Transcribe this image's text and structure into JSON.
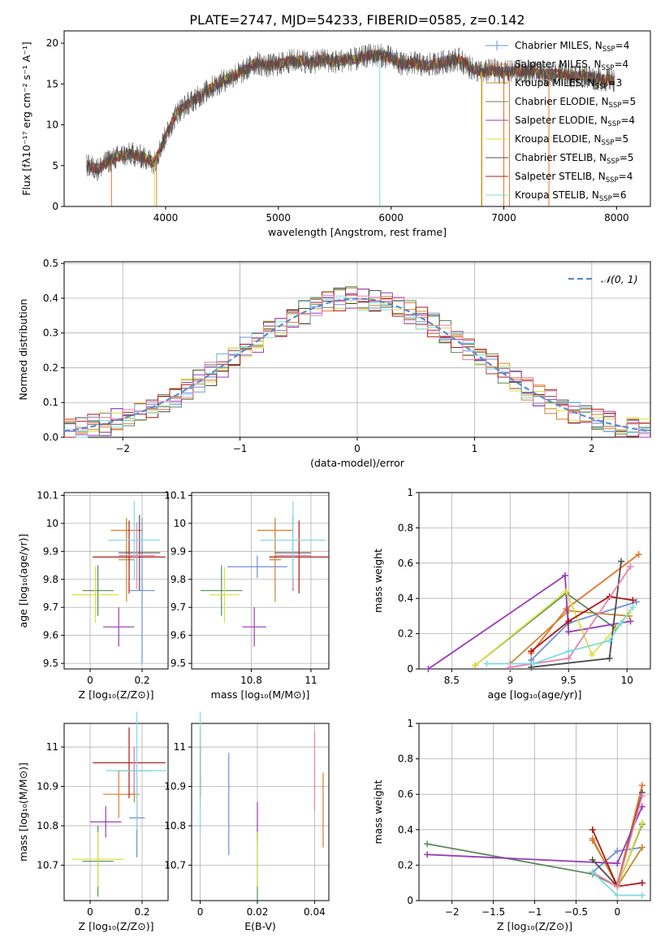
{
  "title": "PLATE=2747, MJD=54233, FIBERID=0585, z=0.142",
  "chart_data": [
    {
      "id": "spectrum",
      "type": "line",
      "xlabel": "wavelength [Angstrom, rest frame]",
      "ylabel": "Flux [fλ10⁻¹⁷ erg cm⁻² s⁻¹ A⁻¹]",
      "xlim": [
        3100,
        8300
      ],
      "ylim": [
        0,
        21.5
      ],
      "xticks": [
        4000,
        5000,
        6000,
        7000,
        8000
      ],
      "yticks": [
        0,
        5,
        10,
        15,
        20
      ],
      "legend_position": "top-right",
      "series": [
        {
          "name": "Chabrier MILES, N_SSP=4",
          "label": "Chabrier MILES, N",
          "sub": "SSP",
          "suffix": "=4",
          "color": "#6f8fd8"
        },
        {
          "name": "Salpeter MILES, N_SSP=4",
          "label": "Salpeter MILES, N",
          "sub": "SSP",
          "suffix": "=4",
          "color": "#e4742a"
        },
        {
          "name": "Kroupa MILES, N_SSP=3",
          "label": "Kroupa MILES, N",
          "sub": "SSP",
          "suffix": "=3",
          "color": "#c8862f"
        },
        {
          "name": "Chabrier ELODIE, N_SSP=5",
          "label": "Chabrier ELODIE, N",
          "sub": "SSP",
          "suffix": "=5",
          "color": "#5b8a5b"
        },
        {
          "name": "Salpeter ELODIE, N_SSP=4",
          "label": "Salpeter ELODIE, N",
          "sub": "SSP",
          "suffix": "=4",
          "color": "#9a39b8"
        },
        {
          "name": "Kroupa ELODIE, N_SSP=5",
          "label": "Kroupa ELODIE, N",
          "sub": "SSP",
          "suffix": "=5",
          "color": "#d8e040"
        },
        {
          "name": "Chabrier STELIB, N_SSP=5",
          "label": "Chabrier STELIB, N",
          "sub": "SSP",
          "suffix": "=5",
          "color": "#4d4d4d"
        },
        {
          "name": "Salpeter STELIB, N_SSP=4",
          "label": "Salpeter STELIB, N",
          "sub": "SSP",
          "suffix": "=4",
          "color": "#b01818"
        },
        {
          "name": "Kroupa STELIB, N_SSP=6",
          "label": "Kroupa STELIB, N",
          "sub": "SSP",
          "suffix": "=6",
          "color": "#7fd9e0"
        }
      ],
      "envelope": {
        "x": [
          3300,
          3400,
          3500,
          3600,
          3700,
          3800,
          3900,
          4000,
          4100,
          4200,
          4300,
          4400,
          4500,
          4600,
          4700,
          4800,
          4900,
          5000,
          5100,
          5200,
          5300,
          5400,
          5500,
          5600,
          5700,
          5800,
          5900,
          6000,
          6100,
          6200,
          6300,
          6400,
          6500,
          6600,
          6700,
          6800,
          6900,
          7000,
          7100,
          7200,
          7300,
          7400,
          7500,
          7600,
          7700,
          7800,
          7900
        ],
        "y": [
          5.0,
          4.6,
          5.6,
          6.2,
          6.4,
          6.0,
          5.4,
          8.6,
          11.5,
          12.6,
          13.5,
          14.5,
          15.3,
          16.0,
          16.6,
          17.6,
          17.2,
          17.4,
          17.8,
          17.9,
          17.6,
          18.0,
          17.7,
          18.0,
          18.0,
          18.5,
          18.5,
          18.2,
          17.4,
          17.6,
          17.2,
          17.5,
          17.8,
          18.0,
          17.0,
          16.4,
          16.7,
          16.4,
          16.6,
          16.5,
          16.3,
          16.2,
          16.3,
          16.0,
          16.0,
          15.7,
          15.5
        ]
      },
      "dips": [
        [
          3520,
          0
        ],
        [
          3900,
          0
        ],
        [
          3920,
          0
        ],
        [
          5900,
          0
        ],
        [
          6800,
          0
        ],
        [
          6805,
          0
        ],
        [
          7000,
          0
        ],
        [
          7050,
          0
        ],
        [
          7400,
          0
        ]
      ]
    },
    {
      "id": "residuals",
      "type": "line",
      "xlabel": "(data-model)/error",
      "ylabel": "Normed distribution",
      "xlim": [
        -2.5,
        2.5
      ],
      "ylim": [
        0,
        0.505
      ],
      "xticks": [
        -2,
        -1,
        0,
        1,
        2
      ],
      "yticks": [
        0.0,
        0.1,
        0.2,
        0.3,
        0.4,
        0.5
      ],
      "grid": true,
      "legend_position": "top-right",
      "reference": {
        "name": "𝒩(0, 1)",
        "color": "#5b8bd0",
        "dashed": true
      },
      "bin_width": 0.1,
      "bin_start": -2.5
    },
    {
      "id": "age_vs_Z",
      "type": "scatter",
      "xlabel": "Z [log₁₀(Z/Z⊙)]",
      "ylabel": "age  [log₁₀(age/yr)]",
      "xlim": [
        -0.1,
        0.3
      ],
      "ylim": [
        9.48,
        10.11
      ],
      "xticks": [
        0.0,
        0.2
      ],
      "yticks": [
        9.5,
        9.6,
        9.7,
        9.8,
        9.9,
        10.0,
        10.1
      ],
      "grid": true,
      "points": [
        {
          "color": "#6f8fd8",
          "x": 0.2,
          "y": 9.76,
          "xerr": 0.05,
          "yerr": 0.26
        },
        {
          "color": "#e4742a",
          "x": 0.14,
          "y": 9.975,
          "xerr": 0.06,
          "yerr": 0.03
        },
        {
          "color": "#c8862f",
          "x": 0.14,
          "y": 9.87,
          "xerr": 0.03,
          "yerr": 0.15
        },
        {
          "color": "#5b8a5b",
          "x": 0.03,
          "y": 9.76,
          "xerr": 0.06,
          "yerr": 0.09
        },
        {
          "color": "#9a39b8",
          "x": 0.11,
          "y": 9.63,
          "xerr": 0.06,
          "yerr": 0.07
        },
        {
          "color": "#d8e040",
          "x": 0.02,
          "y": 9.745,
          "xerr": 0.09,
          "yerr": 0.1
        },
        {
          "color": "#4d4d4d",
          "x": 0.19,
          "y": 9.895,
          "xerr": 0.08,
          "yerr": 0.135
        },
        {
          "color": "#b01818",
          "x": 0.15,
          "y": 9.88,
          "xerr": 0.14,
          "yerr": 0.13
        },
        {
          "color": "#e882ae",
          "x": 0.18,
          "y": 9.885,
          "xerr": 0.07,
          "yerr": 0.12
        },
        {
          "color": "#7fd9e0",
          "x": 0.17,
          "y": 9.94,
          "xerr": 0.1,
          "yerr": 0.14
        }
      ]
    },
    {
      "id": "age_vs_mass",
      "type": "scatter",
      "xlabel": "mass [log₁₀(M/M⊙)]",
      "ylabel": "",
      "xlim": [
        10.6,
        11.06
      ],
      "ylim": [
        9.48,
        10.11
      ],
      "xticks": [
        10.8,
        11.0
      ],
      "yticks": [
        9.5,
        9.6,
        9.7,
        9.8,
        9.9,
        10.0,
        10.1
      ],
      "grid": true,
      "points": [
        {
          "color": "#6f8fd8",
          "x": 10.82,
          "y": 9.845,
          "xerr": 0.1,
          "yerr": 0.04
        },
        {
          "color": "#e4742a",
          "x": 10.88,
          "y": 9.975,
          "xerr": 0.06,
          "yerr": 0.03
        },
        {
          "color": "#c8862f",
          "x": 10.88,
          "y": 9.87,
          "xerr": 0.02,
          "yerr": 0.15
        },
        {
          "color": "#5b8a5b",
          "x": 10.7,
          "y": 9.76,
          "xerr": 0.07,
          "yerr": 0.09
        },
        {
          "color": "#9a39b8",
          "x": 10.81,
          "y": 9.63,
          "xerr": 0.04,
          "yerr": 0.07
        },
        {
          "color": "#d8e040",
          "x": 10.71,
          "y": 9.745,
          "xerr": 0.05,
          "yerr": 0.1
        },
        {
          "color": "#4d4d4d",
          "x": 10.94,
          "y": 9.895,
          "xerr": 0.06,
          "yerr": 0.135
        },
        {
          "color": "#b01818",
          "x": 10.96,
          "y": 9.88,
          "xerr": 0.1,
          "yerr": 0.13
        },
        {
          "color": "#e882ae",
          "x": 10.94,
          "y": 9.885,
          "xerr": 0.06,
          "yerr": 0.12
        },
        {
          "color": "#7fd9e0",
          "x": 10.94,
          "y": 9.94,
          "xerr": 0.11,
          "yerr": 0.14
        }
      ]
    },
    {
      "id": "weight_vs_age",
      "type": "line",
      "xlabel": "age  [log₁₀(age/yr)]",
      "ylabel": "mass weight",
      "xlim": [
        8.22,
        10.2
      ],
      "ylim": [
        0.0,
        1.0
      ],
      "xticks": [
        8.5,
        9.0,
        9.5,
        10.0
      ],
      "yticks": [
        0.0,
        0.2,
        0.4,
        0.6,
        0.8,
        1.0
      ],
      "grid": true,
      "series": [
        {
          "color": "#6f8fd8",
          "points": [
            [
              9.18,
              0.05
            ],
            [
              9.5,
              0.26
            ],
            [
              10.08,
              0.38
            ]
          ]
        },
        {
          "color": "#e4742a",
          "points": [
            [
              9.18,
              0.09
            ],
            [
              9.48,
              0.34
            ],
            [
              10.1,
              0.65
            ]
          ]
        },
        {
          "color": "#c8862f",
          "points": [
            [
              9.0,
              0.03
            ],
            [
              9.5,
              0.33
            ],
            [
              10.02,
              0.3
            ]
          ]
        },
        {
          "color": "#5b8a5b",
          "points": [
            [
              8.7,
              0.02
            ],
            [
              9.48,
              0.43
            ],
            [
              9.9,
              0.23
            ]
          ]
        },
        {
          "color": "#9a39b8",
          "points": [
            [
              8.3,
              0.0
            ],
            [
              9.47,
              0.53
            ],
            [
              9.5,
              0.21
            ],
            [
              10.03,
              0.27
            ]
          ]
        },
        {
          "color": "#d8e040",
          "points": [
            [
              8.7,
              0.02
            ],
            [
              9.48,
              0.44
            ],
            [
              9.7,
              0.08
            ],
            [
              10.02,
              0.32
            ]
          ]
        },
        {
          "color": "#4d4d4d",
          "points": [
            [
              9.18,
              0.01
            ],
            [
              9.85,
              0.06
            ],
            [
              9.95,
              0.61
            ]
          ]
        },
        {
          "color": "#b01818",
          "points": [
            [
              9.18,
              0.1
            ],
            [
              9.5,
              0.27
            ],
            [
              9.85,
              0.41
            ],
            [
              10.05,
              0.39
            ]
          ]
        },
        {
          "color": "#e882ae",
          "points": [
            [
              9.0,
              0.01
            ],
            [
              9.5,
              0.06
            ],
            [
              10.03,
              0.58
            ]
          ]
        },
        {
          "color": "#7fd9e0",
          "points": [
            [
              8.8,
              0.03
            ],
            [
              9.2,
              0.03
            ],
            [
              9.5,
              0.1
            ],
            [
              9.85,
              0.16
            ],
            [
              9.95,
              0.26
            ],
            [
              10.05,
              0.35
            ]
          ]
        }
      ]
    },
    {
      "id": "mass_vs_Z",
      "type": "scatter",
      "xlabel": "Z [log₁₀(Z/Z⊙)]",
      "ylabel": "mass [log₁₀(M/M⊙)]",
      "xlim": [
        -0.1,
        0.3
      ],
      "ylim": [
        10.61,
        11.06
      ],
      "xticks": [
        0.0,
        0.2
      ],
      "yticks": [
        10.7,
        10.8,
        10.9,
        11.0
      ],
      "grid": true,
      "points": [
        {
          "color": "#6f8fd8",
          "x": 0.18,
          "y": 10.82,
          "xerr": 0.03,
          "yerr": 0.1
        },
        {
          "color": "#e4742a",
          "x": 0.11,
          "y": 10.88,
          "xerr": 0.06,
          "yerr": 0.06
        },
        {
          "color": "#c8862f",
          "x": 0.17,
          "y": 10.88,
          "xerr": 0.02,
          "yerr": 0.02
        },
        {
          "color": "#5b8a5b",
          "x": 0.03,
          "y": 10.71,
          "xerr": 0.06,
          "yerr": 0.09
        },
        {
          "color": "#9a39b8",
          "x": 0.06,
          "y": 10.81,
          "xerr": 0.06,
          "yerr": 0.04
        },
        {
          "color": "#d8e040",
          "x": 0.03,
          "y": 10.715,
          "xerr": 0.1,
          "yerr": 0.07
        },
        {
          "color": "#4d4d4d",
          "x": 0.17,
          "y": 10.94,
          "xerr": 0.07,
          "yerr": 0.06
        },
        {
          "color": "#b01818",
          "x": 0.15,
          "y": 10.96,
          "xerr": 0.14,
          "yerr": 0.09
        },
        {
          "color": "#e882ae",
          "x": 0.17,
          "y": 10.94,
          "xerr": 0.07,
          "yerr": 0.06
        },
        {
          "color": "#7fd9e0",
          "x": 0.18,
          "y": 10.94,
          "xerr": 0.12,
          "yerr": 0.15
        }
      ]
    },
    {
      "id": "mass_vs_ebv",
      "type": "scatter",
      "xlabel": "E(B-V)",
      "ylabel": "",
      "xlim": [
        -0.003,
        0.045
      ],
      "ylim": [
        10.61,
        11.06
      ],
      "xticks": [
        0.0,
        0.02,
        0.04
      ],
      "yticks": [
        10.7,
        10.8,
        10.9,
        11.0
      ],
      "grid": true,
      "points": [
        {
          "color": "#6f8fd8",
          "x": 0.01,
          "y": 10.855,
          "xerr": 0,
          "yerr": 0.13
        },
        {
          "color": "#e4742a",
          "x": 0.043,
          "y": 10.84,
          "xerr": 0,
          "yerr": 0.095
        },
        {
          "color": "#c8862f",
          "x": 0.0,
          "y": 10.88,
          "xerr": 0,
          "yerr": 0.04
        },
        {
          "color": "#5b8a5b",
          "x": 0.02,
          "y": 10.7,
          "xerr": 0,
          "yerr": 0.09
        },
        {
          "color": "#9a39b8",
          "x": 0.02,
          "y": 10.81,
          "xerr": 0,
          "yerr": 0.05
        },
        {
          "color": "#d8e040",
          "x": 0.02,
          "y": 10.715,
          "xerr": 0,
          "yerr": 0.07
        },
        {
          "color": "#4d4d4d",
          "x": 0.0,
          "y": 10.94,
          "xerr": 0,
          "yerr": 0.06
        },
        {
          "color": "#b01818",
          "x": 0.0,
          "y": 10.96,
          "xerr": 0,
          "yerr": 0.09
        },
        {
          "color": "#e882ae",
          "x": 0.04,
          "y": 10.94,
          "xerr": 0,
          "yerr": 0.1
        },
        {
          "color": "#7fd9e0",
          "x": 0.0,
          "y": 10.94,
          "xerr": 0,
          "yerr": 0.15
        }
      ]
    },
    {
      "id": "weight_vs_Z",
      "type": "line",
      "xlabel": "Z [log₁₀(Z/Z⊙)]",
      "ylabel": "mass weight",
      "xlim": [
        -2.4,
        0.4
      ],
      "ylim": [
        0.0,
        1.0
      ],
      "xticks": [
        -2.0,
        -1.5,
        -1.0,
        -0.5,
        0.0
      ],
      "yticks": [
        0.0,
        0.2,
        0.4,
        0.6,
        0.8,
        1.0
      ],
      "grid": true,
      "series": [
        {
          "color": "#6f8fd8",
          "points": [
            [
              -0.3,
              0.16
            ],
            [
              0.0,
              0.28
            ],
            [
              0.3,
              0.3
            ]
          ]
        },
        {
          "color": "#e4742a",
          "points": [
            [
              -0.3,
              0.34
            ],
            [
              0.0,
              0.09
            ],
            [
              0.3,
              0.65
            ]
          ]
        },
        {
          "color": "#c8862f",
          "points": [
            [
              -0.3,
              0.35
            ],
            [
              0.0,
              0.08
            ],
            [
              0.3,
              0.3
            ]
          ]
        },
        {
          "color": "#5b8a5b",
          "points": [
            [
              -2.3,
              0.32
            ],
            [
              -0.3,
              0.15
            ],
            [
              0.0,
              0.08
            ],
            [
              0.3,
              0.43
            ]
          ]
        },
        {
          "color": "#9a39b8",
          "points": [
            [
              -2.3,
              0.26
            ],
            [
              0.0,
              0.21
            ],
            [
              0.3,
              0.53
            ]
          ]
        },
        {
          "color": "#d8e040",
          "points": [
            [
              -0.3,
              0.16
            ],
            [
              0.0,
              0.08
            ],
            [
              0.3,
              0.44
            ]
          ]
        },
        {
          "color": "#4d4d4d",
          "points": [
            [
              -0.3,
              0.23
            ],
            [
              0.0,
              0.08
            ],
            [
              0.3,
              0.61
            ]
          ]
        },
        {
          "color": "#b01818",
          "points": [
            [
              -0.3,
              0.4
            ],
            [
              0.0,
              0.08
            ],
            [
              0.3,
              0.1
            ]
          ]
        },
        {
          "color": "#e882ae",
          "points": [
            [
              -0.3,
              0.16
            ],
            [
              0.0,
              0.08
            ],
            [
              0.3,
              0.59
            ]
          ]
        },
        {
          "color": "#7fd9e0",
          "points": [
            [
              -0.3,
              0.16
            ],
            [
              0.0,
              0.03
            ],
            [
              0.3,
              0.03
            ]
          ]
        }
      ]
    }
  ]
}
